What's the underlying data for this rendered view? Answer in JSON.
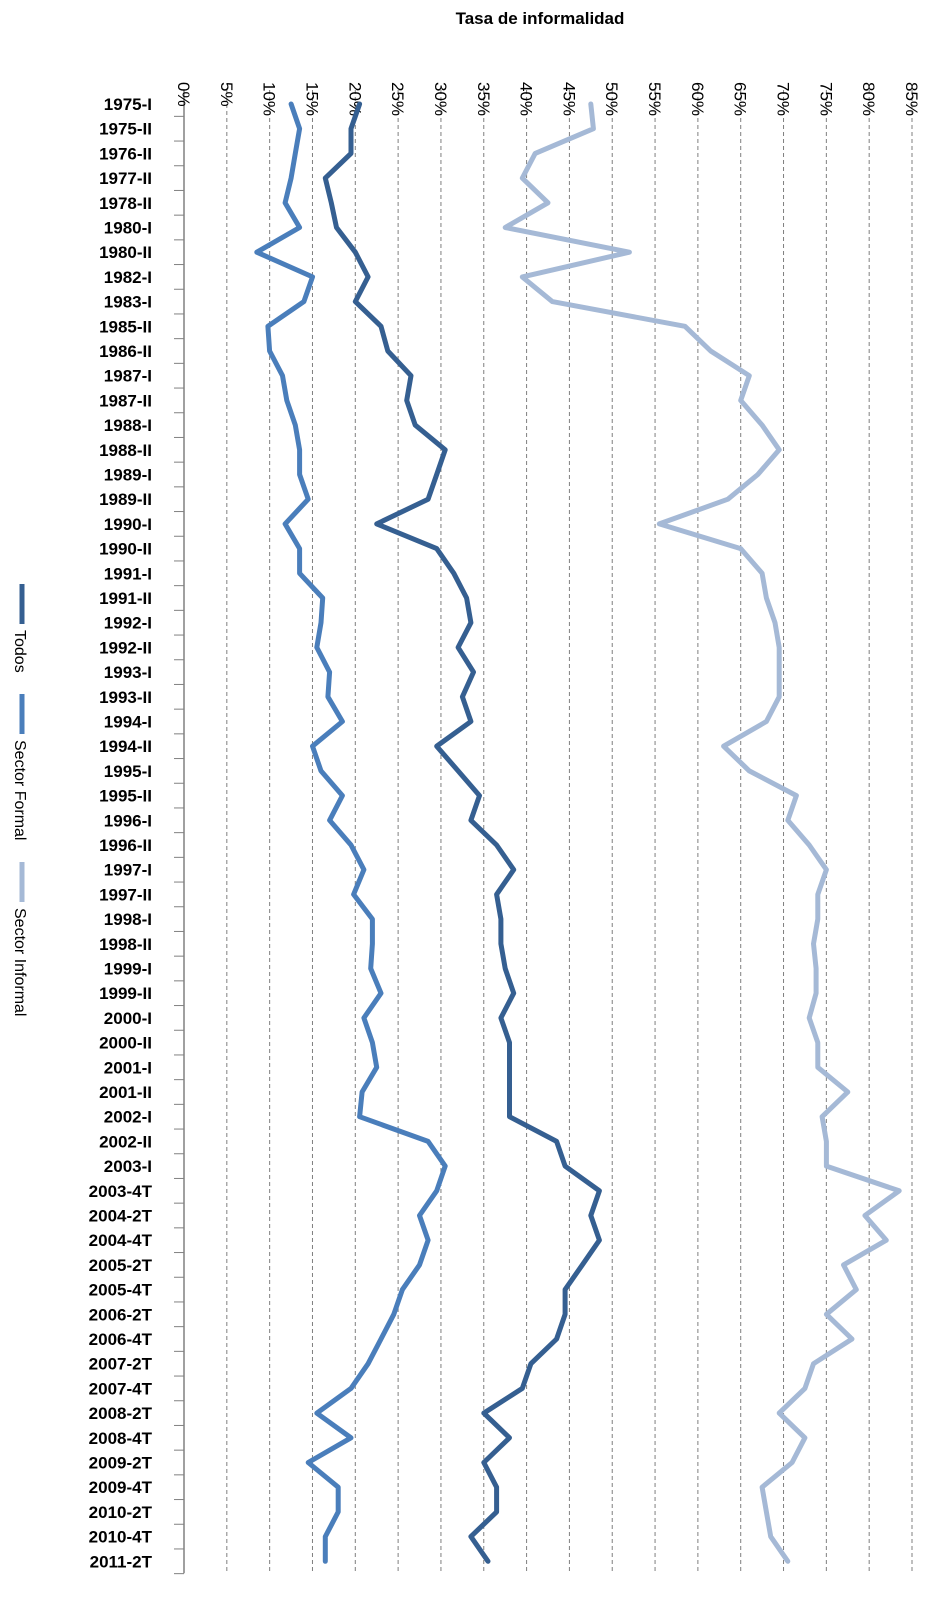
{
  "chart_data": {
    "type": "line",
    "title": "Tasa de informalidad",
    "orientation": "horizontal-values",
    "xlim": [
      0,
      85
    ],
    "x_ticks": [
      "0%",
      "5%",
      "10%",
      "15%",
      "20%",
      "25%",
      "30%",
      "35%",
      "40%",
      "45%",
      "50%",
      "55%",
      "60%",
      "65%",
      "70%",
      "75%",
      "80%",
      "85%"
    ],
    "grid": true,
    "legend_position": "left, rotated",
    "categories": [
      "1975-I",
      "1975-II",
      "1976-II",
      "1977-II",
      "1978-II",
      "1980-I",
      "1980-II",
      "1982-I",
      "1983-I",
      "1985-II",
      "1986-II",
      "1987-I",
      "1987-II",
      "1988-I",
      "1988-II",
      "1989-I",
      "1989-II",
      "1990-I",
      "1990-II",
      "1991-I",
      "1991-II",
      "1992-I",
      "1992-II",
      "1993-I",
      "1993-II",
      "1994-I",
      "1994-II",
      "1995-I",
      "1995-II",
      "1996-I",
      "1996-II",
      "1997-I",
      "1997-II",
      "1998-I",
      "1998-II",
      "1999-I",
      "1999-II",
      "2000-I",
      "2000-II",
      "2001-I",
      "2001-II",
      "2002-I",
      "2002-II",
      "2003-I",
      "2003-4T",
      "2004-2T",
      "2004-4T",
      "2005-2T",
      "2005-4T",
      "2006-2T",
      "2006-4T",
      "2007-2T",
      "2007-4T",
      "2008-2T",
      "2008-4T",
      "2009-2T",
      "2009-4T",
      "2010-2T",
      "2010-4T",
      "2011-2T"
    ],
    "series": [
      {
        "name": "Todos",
        "color": "#355f91",
        "values": [
          20.5,
          19.5,
          19.5,
          16.5,
          17.2,
          17.8,
          20.0,
          21.5,
          20.0,
          23.0,
          23.8,
          26.5,
          26.0,
          27.0,
          30.5,
          29.5,
          28.5,
          22.5,
          29.5,
          31.5,
          33.0,
          33.5,
          32.0,
          33.8,
          32.5,
          33.5,
          29.5,
          32.0,
          34.5,
          33.5,
          36.5,
          38.5,
          36.5,
          37.0,
          37.0,
          37.5,
          38.5,
          37.0,
          38.0,
          38.0,
          38.0,
          38.0,
          43.5,
          44.5,
          48.5,
          47.5,
          48.5,
          46.5,
          44.5,
          44.5,
          43.5,
          40.5,
          39.5,
          35.0,
          38.0,
          35.0,
          36.5,
          36.5,
          33.5,
          35.5
        ]
      },
      {
        "name": "Sector Formal",
        "color": "#4a7ebb",
        "values": [
          12.5,
          13.5,
          13.0,
          12.5,
          11.8,
          13.5,
          8.5,
          15.0,
          14.0,
          9.8,
          10.0,
          11.5,
          12.0,
          13.0,
          13.5,
          13.5,
          14.5,
          11.8,
          13.5,
          13.5,
          16.2,
          16.0,
          15.5,
          17.0,
          16.8,
          18.5,
          15.0,
          16.0,
          18.5,
          17.0,
          19.5,
          21.0,
          19.8,
          22.0,
          22.0,
          21.8,
          23.0,
          21.0,
          22.0,
          22.5,
          20.8,
          20.5,
          28.5,
          30.5,
          29.5,
          27.5,
          28.5,
          27.5,
          25.5,
          24.5,
          23.0,
          21.5,
          19.5,
          15.5,
          19.5,
          14.5,
          18.0,
          18.0,
          16.5,
          16.5
        ]
      },
      {
        "name": "Sector Informal",
        "color": "#a5b9d6",
        "values": [
          47.5,
          47.8,
          41.0,
          39.5,
          42.5,
          37.5,
          52.0,
          39.5,
          43.0,
          58.5,
          61.5,
          66.0,
          65.0,
          67.5,
          69.5,
          67.0,
          63.5,
          55.5,
          65.0,
          67.5,
          68.0,
          69.0,
          69.5,
          69.5,
          69.5,
          68.0,
          63.0,
          66.0,
          71.5,
          70.5,
          73.0,
          75.0,
          74.0,
          74.0,
          73.5,
          73.8,
          73.8,
          73.0,
          74.0,
          74.0,
          77.5,
          74.5,
          75.0,
          75.0,
          83.5,
          79.5,
          82.0,
          77.0,
          78.5,
          75.0,
          78.0,
          73.5,
          72.5,
          69.5,
          72.5,
          71.0,
          67.5,
          68.0,
          68.5,
          70.5
        ]
      }
    ]
  }
}
